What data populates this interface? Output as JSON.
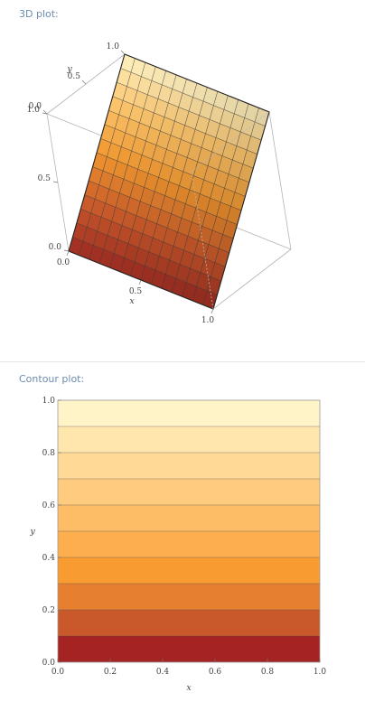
{
  "pods": {
    "plot3d_title": "3D plot:",
    "contour_title": "Contour plot:"
  },
  "chart_data": [
    {
      "type": "surface",
      "function": "z = y",
      "xlabel": "x",
      "ylabel": "y",
      "zlabel": "",
      "xlim": [
        0,
        1
      ],
      "ylim": [
        0,
        1
      ],
      "zlim": [
        0,
        1
      ],
      "x_ticks": [
        "0.0",
        "0.5",
        "1.0"
      ],
      "y_ticks": [
        "0.0",
        "0.5",
        "1.0"
      ],
      "z_ticks": [
        "0.0",
        "0.5",
        "1.0"
      ],
      "mesh_lines": 14,
      "colormap": [
        "#9e2a22",
        "#c95a2a",
        "#f0962f",
        "#fbc46b",
        "#fff3c4"
      ]
    },
    {
      "type": "contour",
      "function": "z = y",
      "xlabel": "x",
      "ylabel": "y",
      "xlim": [
        0,
        1
      ],
      "ylim": [
        0,
        1
      ],
      "x_ticks": [
        "0.0",
        "0.2",
        "0.4",
        "0.6",
        "0.8",
        "1.0"
      ],
      "y_ticks": [
        "0.0",
        "0.2",
        "0.4",
        "0.6",
        "0.8",
        "1.0"
      ],
      "levels": [
        0.1,
        0.2,
        0.3,
        0.4,
        0.5,
        0.6,
        0.7,
        0.8,
        0.9
      ],
      "band_colors": [
        "#a52323",
        "#c9582b",
        "#e67f30",
        "#f89c32",
        "#fdaf4f",
        "#fdbd66",
        "#fecb7f",
        "#ffd995",
        "#ffe6ad",
        "#fff3c8"
      ]
    }
  ]
}
